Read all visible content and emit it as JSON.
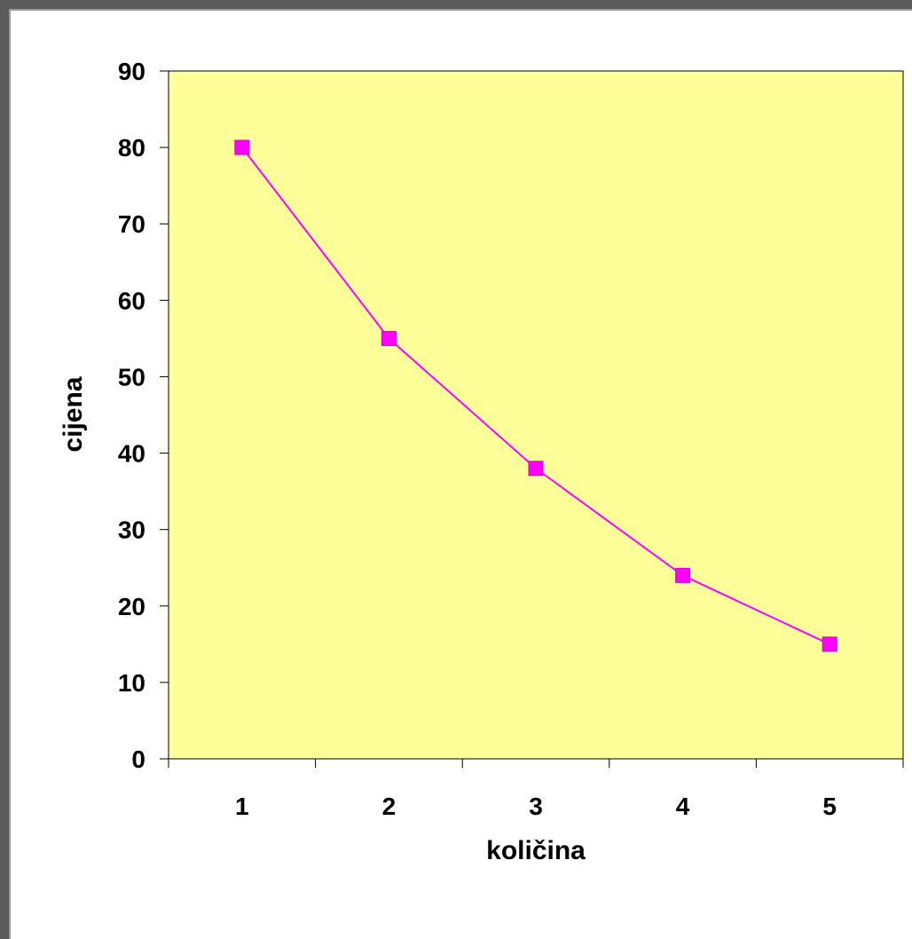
{
  "chart_data": {
    "type": "line",
    "xlabel": "količina",
    "ylabel": "cijena",
    "categories": [
      "1",
      "2",
      "3",
      "4",
      "5"
    ],
    "series": [
      {
        "values": [
          80,
          55,
          38,
          24,
          15
        ]
      }
    ],
    "ylim": [
      0,
      90
    ],
    "yticks": [
      "0",
      "10",
      "20",
      "30",
      "40",
      "50",
      "60",
      "70",
      "80",
      "90"
    ],
    "grid": false,
    "legend": "none",
    "colors": {
      "plot_background": "#ffff99",
      "series_line": "#ff00ff",
      "marker": "#ff00ff",
      "axis": "#000000"
    },
    "marker": "square"
  }
}
